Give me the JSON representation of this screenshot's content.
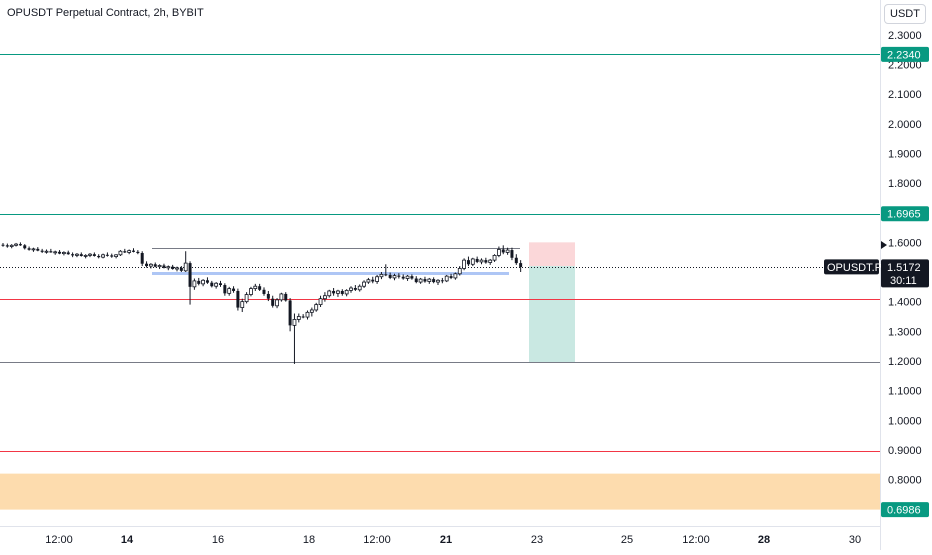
{
  "header": {
    "title": "OPUSDT Perpetual Contract, 2h, BYBIT"
  },
  "currency_button": {
    "label": "USDT"
  },
  "colors": {
    "up": "#131722",
    "down": "#131722",
    "green_line": "#089981",
    "red_line": "#f23645",
    "gray_line": "#787b86",
    "blue_line": "#aec6f5",
    "orange_zone": "#fddcae",
    "stop_zone": "#fbd7d9",
    "target_zone": "#c9e8e2"
  },
  "chart_data": {
    "type": "candlestick",
    "ylim": [
      0.65,
      2.35
    ],
    "y_ticks": [
      "2.3000",
      "2.2000",
      "2.1000",
      "2.0000",
      "1.9000",
      "1.8000",
      "1.6000",
      "1.4000",
      "1.3000",
      "1.2000",
      "1.1000",
      "1.0000",
      "0.9000",
      "0.8000"
    ],
    "x_tick_labels": [
      {
        "label": "12:00",
        "bold": false
      },
      {
        "label": "14",
        "bold": true
      },
      {
        "label": "16",
        "bold": false
      },
      {
        "label": "18",
        "bold": false
      },
      {
        "label": "12:00",
        "bold": false
      },
      {
        "label": "21",
        "bold": true
      },
      {
        "label": "23",
        "bold": false
      },
      {
        "label": "25",
        "bold": false
      },
      {
        "label": "12:00",
        "bold": false
      },
      {
        "label": "28",
        "bold": true
      },
      {
        "label": "30",
        "bold": false
      }
    ],
    "horizontal_levels": [
      {
        "value": 2.234,
        "color": "green",
        "label": "2.2340"
      },
      {
        "value": 1.6965,
        "color": "green",
        "label": "1.6965"
      },
      {
        "value": 1.58,
        "color": "gray",
        "label": ""
      },
      {
        "value": 1.41,
        "color": "red",
        "label": ""
      },
      {
        "value": 1.195,
        "color": "gray",
        "label": ""
      },
      {
        "value": 0.895,
        "color": "red",
        "label": ""
      }
    ],
    "support_zone": {
      "from": 0.6986,
      "to": 0.82,
      "label": "0.6986"
    },
    "blue_level": {
      "value": 1.495
    },
    "current_price": {
      "value": 1.5172,
      "symbol": "OPUSDT.P",
      "label": "1.5172",
      "countdown": "30:11"
    },
    "position": {
      "entry": 1.52,
      "stop": 1.6,
      "target": 1.195
    },
    "candles": [
      [
        1.592,
        1.598,
        1.585,
        1.59
      ],
      [
        1.59,
        1.596,
        1.582,
        1.586
      ],
      [
        1.586,
        1.594,
        1.58,
        1.59
      ],
      [
        1.59,
        1.598,
        1.586,
        1.594
      ],
      [
        1.594,
        1.6,
        1.588,
        1.59
      ],
      [
        1.59,
        1.594,
        1.576,
        1.58
      ],
      [
        1.58,
        1.586,
        1.572,
        1.575
      ],
      [
        1.575,
        1.582,
        1.568,
        1.578
      ],
      [
        1.578,
        1.584,
        1.57,
        1.572
      ],
      [
        1.572,
        1.578,
        1.564,
        1.568
      ],
      [
        1.568,
        1.576,
        1.562,
        1.57
      ],
      [
        1.57,
        1.578,
        1.565,
        1.566
      ],
      [
        1.566,
        1.572,
        1.558,
        1.568
      ],
      [
        1.568,
        1.574,
        1.56,
        1.562
      ],
      [
        1.562,
        1.57,
        1.556,
        1.566
      ],
      [
        1.566,
        1.572,
        1.558,
        1.56
      ],
      [
        1.56,
        1.566,
        1.55,
        1.556
      ],
      [
        1.556,
        1.564,
        1.55,
        1.56
      ],
      [
        1.56,
        1.566,
        1.552,
        1.554
      ],
      [
        1.554,
        1.56,
        1.546,
        1.556
      ],
      [
        1.556,
        1.564,
        1.55,
        1.56
      ],
      [
        1.56,
        1.566,
        1.552,
        1.554
      ],
      [
        1.554,
        1.56,
        1.546,
        1.55
      ],
      [
        1.55,
        1.562,
        1.546,
        1.558
      ],
      [
        1.558,
        1.566,
        1.552,
        1.556
      ],
      [
        1.556,
        1.562,
        1.548,
        1.552
      ],
      [
        1.552,
        1.56,
        1.546,
        1.558
      ],
      [
        1.558,
        1.574,
        1.554,
        1.57
      ],
      [
        1.57,
        1.578,
        1.564,
        1.566
      ],
      [
        1.566,
        1.576,
        1.56,
        1.572
      ],
      [
        1.572,
        1.58,
        1.566,
        1.568
      ],
      [
        1.568,
        1.574,
        1.56,
        1.564
      ],
      [
        1.564,
        1.57,
        1.52,
        1.528
      ],
      [
        1.528,
        1.536,
        1.515,
        1.52
      ],
      [
        1.52,
        1.53,
        1.512,
        1.526
      ],
      [
        1.526,
        1.532,
        1.516,
        1.518
      ],
      [
        1.518,
        1.526,
        1.51,
        1.522
      ],
      [
        1.522,
        1.528,
        1.512,
        1.514
      ],
      [
        1.514,
        1.522,
        1.506,
        1.518
      ],
      [
        1.518,
        1.524,
        1.508,
        1.51
      ],
      [
        1.51,
        1.518,
        1.502,
        1.514
      ],
      [
        1.514,
        1.52,
        1.5,
        1.504
      ],
      [
        1.504,
        1.57,
        1.5,
        1.53
      ],
      [
        1.53,
        1.536,
        1.39,
        1.45
      ],
      [
        1.45,
        1.478,
        1.44,
        1.47
      ],
      [
        1.47,
        1.48,
        1.455,
        1.46
      ],
      [
        1.46,
        1.476,
        1.452,
        1.472
      ],
      [
        1.472,
        1.482,
        1.46,
        1.464
      ],
      [
        1.464,
        1.47,
        1.448,
        1.452
      ],
      [
        1.452,
        1.466,
        1.444,
        1.462
      ],
      [
        1.462,
        1.47,
        1.45,
        1.456
      ],
      [
        1.456,
        1.462,
        1.42,
        1.428
      ],
      [
        1.428,
        1.45,
        1.42,
        1.444
      ],
      [
        1.444,
        1.452,
        1.43,
        1.436
      ],
      [
        1.436,
        1.444,
        1.37,
        1.38
      ],
      [
        1.38,
        1.41,
        1.365,
        1.4
      ],
      [
        1.4,
        1.432,
        1.394,
        1.424
      ],
      [
        1.424,
        1.45,
        1.418,
        1.444
      ],
      [
        1.444,
        1.46,
        1.436,
        1.452
      ],
      [
        1.452,
        1.46,
        1.436,
        1.44
      ],
      [
        1.44,
        1.448,
        1.42,
        1.426
      ],
      [
        1.426,
        1.436,
        1.402,
        1.41
      ],
      [
        1.41,
        1.42,
        1.38,
        1.386
      ],
      [
        1.386,
        1.412,
        1.378,
        1.406
      ],
      [
        1.406,
        1.43,
        1.4,
        1.426
      ],
      [
        1.426,
        1.432,
        1.4,
        1.404
      ],
      [
        1.404,
        1.412,
        1.3,
        1.32
      ],
      [
        1.32,
        1.36,
        1.19,
        1.34
      ],
      [
        1.34,
        1.36,
        1.33,
        1.35
      ],
      [
        1.35,
        1.358,
        1.344,
        1.348
      ],
      [
        1.348,
        1.37,
        1.34,
        1.364
      ],
      [
        1.364,
        1.38,
        1.35,
        1.372
      ],
      [
        1.372,
        1.396,
        1.366,
        1.39
      ],
      [
        1.39,
        1.42,
        1.382,
        1.41
      ],
      [
        1.41,
        1.432,
        1.4,
        1.42
      ],
      [
        1.42,
        1.44,
        1.414,
        1.436
      ],
      [
        1.436,
        1.446,
        1.42,
        1.428
      ],
      [
        1.428,
        1.44,
        1.416,
        1.436
      ],
      [
        1.436,
        1.442,
        1.42,
        1.426
      ],
      [
        1.426,
        1.442,
        1.418,
        1.438
      ],
      [
        1.438,
        1.452,
        1.43,
        1.446
      ],
      [
        1.446,
        1.456,
        1.436,
        1.44
      ],
      [
        1.44,
        1.458,
        1.434,
        1.452
      ],
      [
        1.452,
        1.472,
        1.446,
        1.466
      ],
      [
        1.466,
        1.48,
        1.46,
        1.474
      ],
      [
        1.474,
        1.484,
        1.462,
        1.468
      ],
      [
        1.468,
        1.49,
        1.46,
        1.484
      ],
      [
        1.484,
        1.5,
        1.476,
        1.492
      ],
      [
        1.492,
        1.526,
        1.486,
        1.49
      ],
      [
        1.49,
        1.498,
        1.476,
        1.48
      ],
      [
        1.48,
        1.494,
        1.472,
        1.488
      ],
      [
        1.488,
        1.496,
        1.478,
        1.484
      ],
      [
        1.484,
        1.492,
        1.474,
        1.478
      ],
      [
        1.478,
        1.49,
        1.47,
        1.486
      ],
      [
        1.486,
        1.492,
        1.474,
        1.478
      ],
      [
        1.478,
        1.486,
        1.462,
        1.466
      ],
      [
        1.466,
        1.48,
        1.46,
        1.476
      ],
      [
        1.476,
        1.484,
        1.464,
        1.468
      ],
      [
        1.468,
        1.48,
        1.46,
        1.476
      ],
      [
        1.476,
        1.482,
        1.462,
        1.466
      ],
      [
        1.466,
        1.476,
        1.456,
        1.472
      ],
      [
        1.472,
        1.48,
        1.462,
        1.47
      ],
      [
        1.47,
        1.49,
        1.466,
        1.486
      ],
      [
        1.486,
        1.494,
        1.476,
        1.48
      ],
      [
        1.48,
        1.498,
        1.474,
        1.494
      ],
      [
        1.494,
        1.52,
        1.488,
        1.512
      ],
      [
        1.512,
        1.546,
        1.506,
        1.54
      ],
      [
        1.54,
        1.552,
        1.52,
        1.526
      ],
      [
        1.526,
        1.548,
        1.52,
        1.544
      ],
      [
        1.544,
        1.552,
        1.53,
        1.534
      ],
      [
        1.534,
        1.546,
        1.526,
        1.54
      ],
      [
        1.54,
        1.548,
        1.528,
        1.532
      ],
      [
        1.532,
        1.544,
        1.524,
        1.54
      ],
      [
        1.54,
        1.56,
        1.534,
        1.556
      ],
      [
        1.556,
        1.586,
        1.55,
        1.576
      ],
      [
        1.576,
        1.59,
        1.56,
        1.566
      ],
      [
        1.566,
        1.582,
        1.558,
        1.574
      ],
      [
        1.574,
        1.582,
        1.54,
        1.548
      ],
      [
        1.548,
        1.56,
        1.524,
        1.53
      ],
      [
        1.53,
        1.54,
        1.5,
        1.517
      ]
    ]
  }
}
